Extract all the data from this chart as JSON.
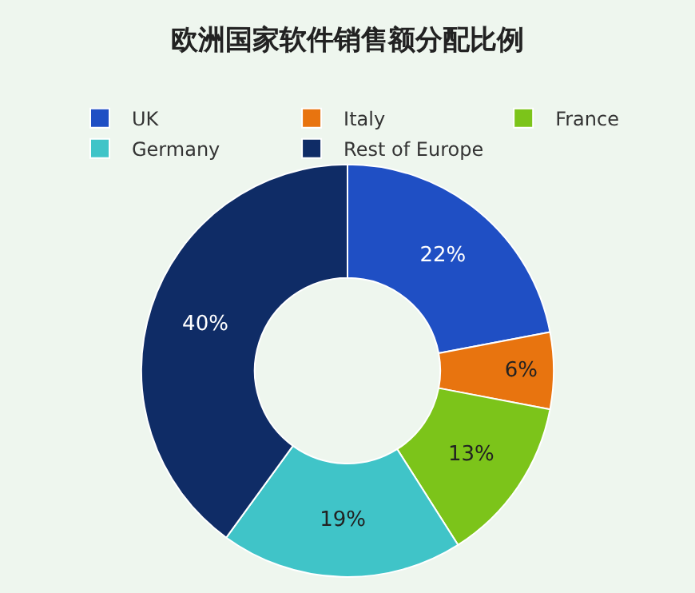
{
  "chart_data": {
    "type": "donut",
    "title": "欧洲国家软件销售额分配比例",
    "categories": [
      "UK",
      "Italy",
      "France",
      "Germany",
      "Rest of Europe"
    ],
    "values": [
      22,
      6,
      13,
      19,
      40
    ],
    "colors": [
      "#1f4fc4",
      "#e8740f",
      "#7cc41a",
      "#40c4c8",
      "#0f2c66"
    ],
    "value_labels": [
      "22%",
      "6%",
      "13%",
      "19%",
      "40%"
    ],
    "legend": "top"
  }
}
